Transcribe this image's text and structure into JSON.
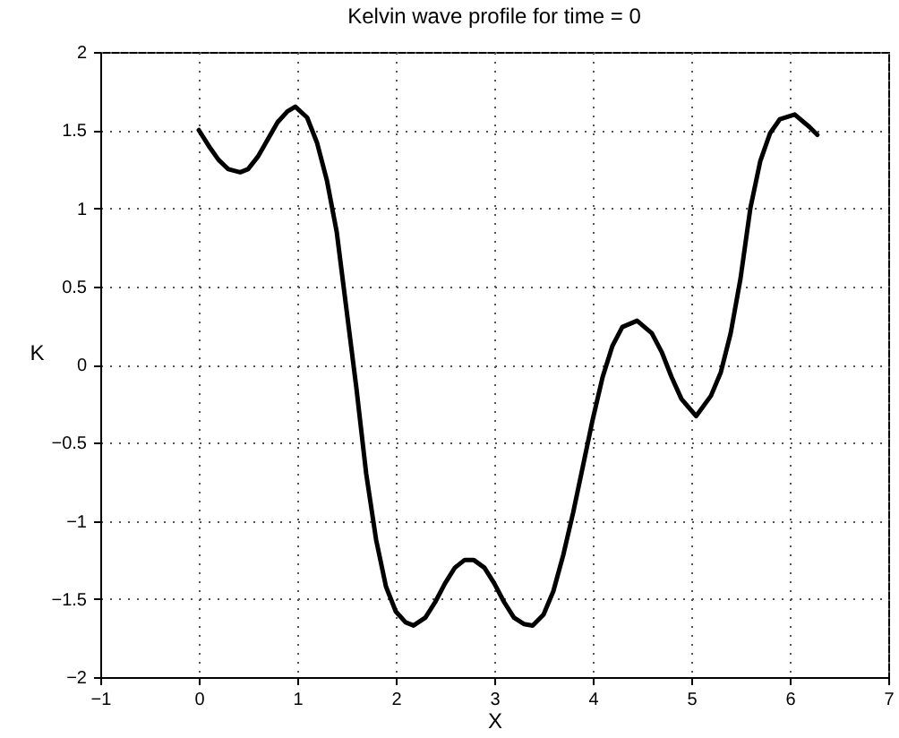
{
  "chart_data": {
    "type": "line",
    "title": "Kelvin wave profile for time = 0",
    "xlabel": "X",
    "ylabel": "K",
    "xlim": [
      -1,
      7
    ],
    "xticks": [
      -1,
      0,
      1,
      2,
      3,
      4,
      5,
      6,
      7
    ],
    "ylim": [
      -2,
      2
    ],
    "yticks": [
      -2,
      -1.5,
      -1,
      -0.5,
      0,
      0.5,
      1,
      1.5,
      2
    ],
    "grid": true,
    "line_style": "solid",
    "marker": "none",
    "x": [
      0,
      0.1,
      0.2,
      0.3,
      0.42,
      0.5,
      0.6,
      0.7,
      0.8,
      0.9,
      0.98,
      1.1,
      1.2,
      1.3,
      1.4,
      1.5,
      1.6,
      1.7,
      1.8,
      1.9,
      2.0,
      2.1,
      2.18,
      2.3,
      2.4,
      2.5,
      2.6,
      2.7,
      2.79,
      2.9,
      3.0,
      3.1,
      3.2,
      3.3,
      3.39,
      3.5,
      3.6,
      3.7,
      3.8,
      3.9,
      4.0,
      4.1,
      4.2,
      4.3,
      4.45,
      4.6,
      4.7,
      4.8,
      4.9,
      5.05,
      5.2,
      5.3,
      5.4,
      5.5,
      5.6,
      5.7,
      5.8,
      5.9,
      6.05,
      6.2,
      6.28
    ],
    "series": [
      {
        "color": "#000000",
        "values": [
          1.5,
          1.4,
          1.31,
          1.25,
          1.23,
          1.25,
          1.33,
          1.44,
          1.55,
          1.62,
          1.65,
          1.58,
          1.42,
          1.18,
          0.85,
          0.35,
          -0.15,
          -0.7,
          -1.12,
          -1.42,
          -1.58,
          -1.65,
          -1.67,
          -1.62,
          -1.52,
          -1.4,
          -1.3,
          -1.25,
          -1.25,
          -1.3,
          -1.4,
          -1.52,
          -1.62,
          -1.66,
          -1.67,
          -1.6,
          -1.45,
          -1.22,
          -0.95,
          -0.65,
          -0.35,
          -0.08,
          0.12,
          0.24,
          0.28,
          0.2,
          0.08,
          -0.08,
          -0.22,
          -0.33,
          -0.2,
          -0.05,
          0.2,
          0.55,
          1.0,
          1.3,
          1.48,
          1.57,
          1.6,
          1.52,
          1.47
        ]
      }
    ]
  }
}
